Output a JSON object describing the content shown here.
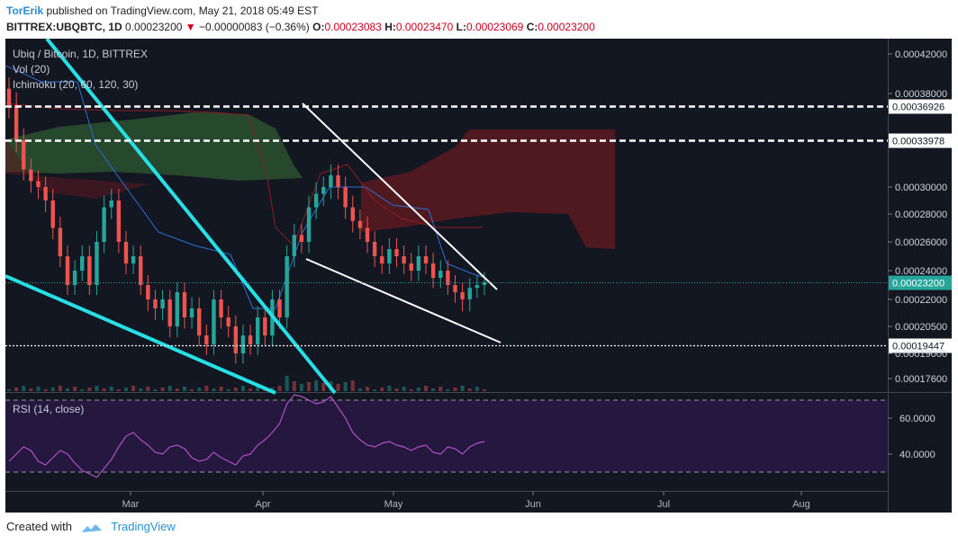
{
  "header": {
    "author": "TorErik",
    "published_text": "published on TradingView.com, May 21, 2018 05:49 EST",
    "symbol": "BITTREX:UBQBTC, 1D",
    "last": "0.00023200",
    "change": "−0.00000083 (−0.36%)",
    "o_label": "O:",
    "o_value": "0.00023083",
    "h_label": "H:",
    "h_value": "0.00023470",
    "l_label": "L:",
    "l_value": "0.00023069",
    "c_label": "C:",
    "c_value": "0.00023200"
  },
  "legend": {
    "title": "Ubiq / Bitcoin, 1D, BITTREX",
    "vol": "Vol (20)",
    "ichimoku": "Ichimoku (20, 60, 120, 30)",
    "rsi": "RSI (14, close)"
  },
  "footer": {
    "created_with": "Created with",
    "brand": "TradingView"
  },
  "colors": {
    "background": "#131722",
    "rsi_fill": "#24183f",
    "up": "#26a69a",
    "down": "#ef5350",
    "cyan_lines": "#26e0e6",
    "white_lines": "#ffffff",
    "rsi_line": "#b34fc8",
    "kijun": "#2a6fd6",
    "tenkan": "#8b1e1e",
    "cloud_green": "#2d5a32",
    "cloud_red": "#5c1a20"
  },
  "chart_data": {
    "type": "candlestick",
    "title": "Ubiq / Bitcoin, 1D, BITTREX",
    "x_ticks": [
      "Mar",
      "Apr",
      "May",
      "Jun",
      "Jul",
      "Aug"
    ],
    "y_ticks": [
      "0.00042000",
      "0.00038000",
      "0.00030000",
      "0.00028000",
      "0.00026000",
      "0.00024000",
      "0.00022000",
      "0.00020500",
      "0.00019000",
      "0.00017600"
    ],
    "price_labels": [
      {
        "label": "0.00036926",
        "value": 0.00036926,
        "style": "dashed-white"
      },
      {
        "label": "0.00033978",
        "value": 0.00033978,
        "style": "dashed-white"
      },
      {
        "label": "0.00023200",
        "value": 0.000232,
        "style": "last-price"
      },
      {
        "label": "0.00019447",
        "value": 0.00019447,
        "style": "dotted-white"
      }
    ],
    "candles_summary": {
      "start_approx": "2018-02-10",
      "end": "2018-05-21",
      "close_path": [
        0.00037,
        0.00034,
        0.000315,
        0.000305,
        0.0003,
        0.00029,
        0.00027,
        0.00025,
        0.00023,
        0.00024,
        0.00025,
        0.00023,
        0.00026,
        0.000285,
        0.00029,
        0.00026,
        0.000245,
        0.00025,
        0.00023,
        0.00022,
        0.000215,
        0.00022,
        0.000205,
        0.000225,
        0.00021,
        0.000215,
        0.0002,
        0.000195,
        0.00022,
        0.00021,
        0.000205,
        0.00019,
        0.0002,
        0.000195,
        0.00021,
        0.0002,
        0.00022,
        0.00021,
        0.00025,
        0.000265,
        0.00026,
        0.000285,
        0.000295,
        0.0003,
        0.00031,
        0.0003,
        0.000285,
        0.000275,
        0.00027,
        0.00026,
        0.00025,
        0.000245,
        0.000255,
        0.00025,
        0.000245,
        0.00024,
        0.00025,
        0.000245,
        0.000235,
        0.00024,
        0.00023,
        0.000225,
        0.00022,
        0.000228,
        0.00023,
        0.000232
      ]
    },
    "rsi": {
      "y_ticks": [
        "60.0000",
        "40.0000"
      ],
      "upper_band": 70,
      "lower_band": 30,
      "last_approx": 47
    }
  }
}
